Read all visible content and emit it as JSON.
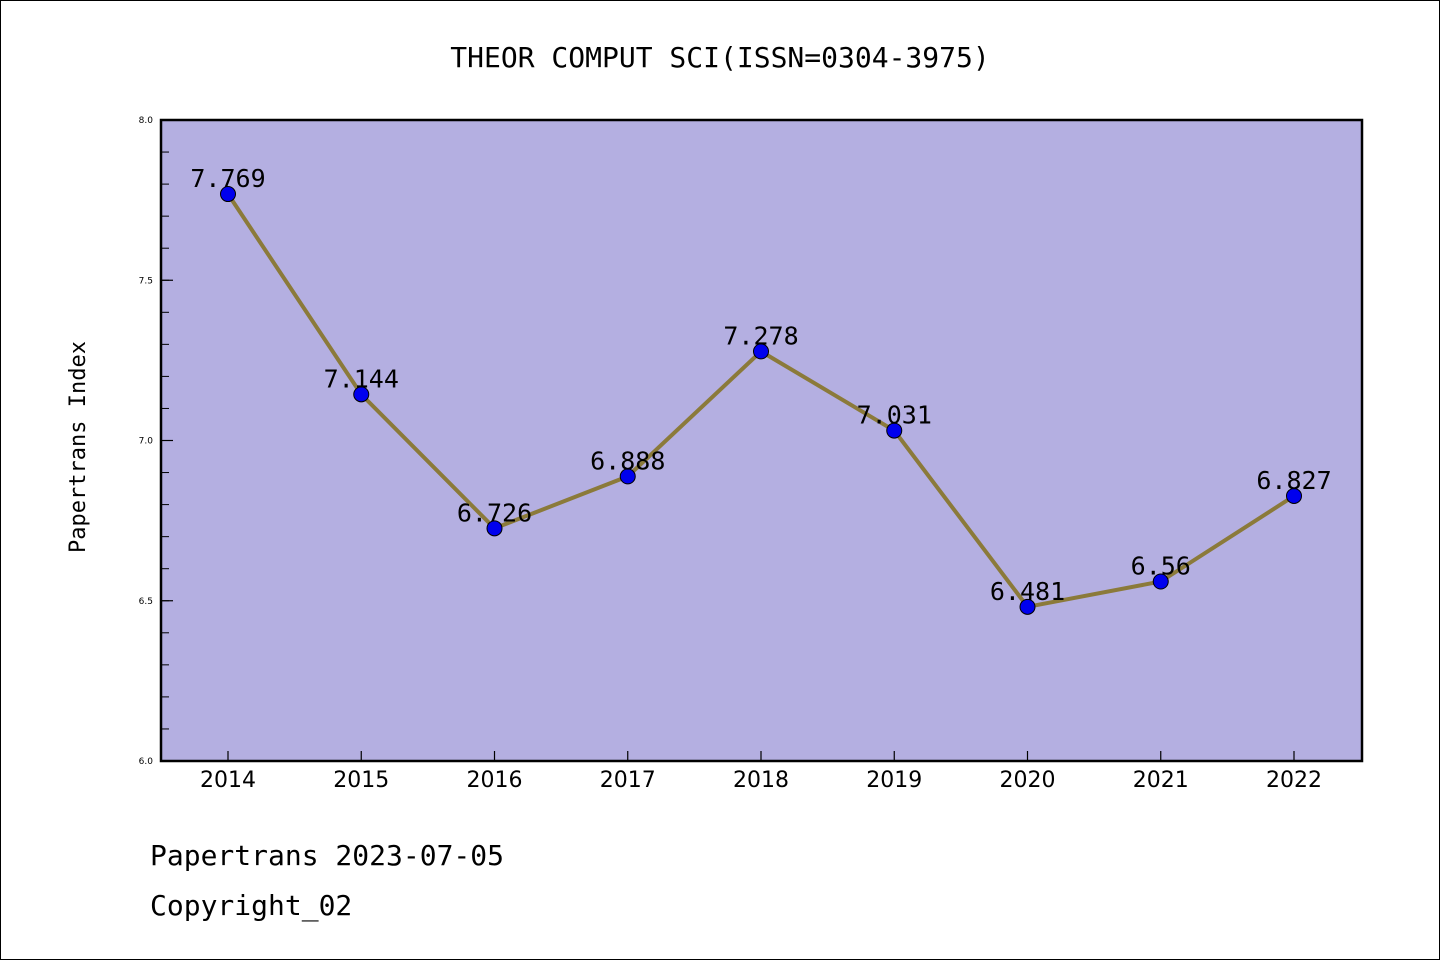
{
  "chart_data": {
    "type": "line",
    "title": "THEOR COMPUT SCI(ISSN=0304-3975)",
    "xlabel": "",
    "ylabel": "Papertrans Index",
    "categories": [
      "2014",
      "2015",
      "2016",
      "2017",
      "2018",
      "2019",
      "2020",
      "2021",
      "2022"
    ],
    "series": [
      {
        "values": [
          7.769,
          7.144,
          6.726,
          6.888,
          7.278,
          7.031,
          6.481,
          6.56,
          6.827
        ],
        "labels": [
          "7.769",
          "7.144",
          "6.726",
          "6.888",
          "7.278",
          "7.031",
          "6.481",
          "6.56",
          "6.827"
        ]
      }
    ],
    "ylim": [
      6.0,
      8.0
    ],
    "yticks": [
      "6.0",
      "6.5",
      "7.0",
      "7.5",
      "8.0"
    ],
    "grid": false,
    "colors": {
      "plot_background": "#b4afe1",
      "line": "#8b7a3a",
      "marker": "#0000ee"
    }
  },
  "footer": {
    "line1": "Papertrans 2023-07-05",
    "line2": "Copyright_02"
  }
}
